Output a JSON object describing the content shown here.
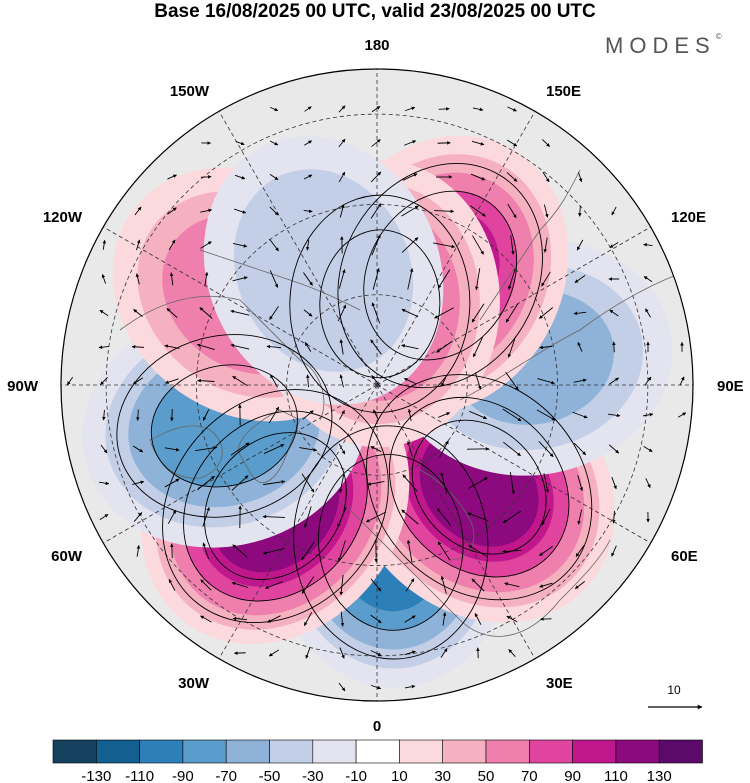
{
  "title": "Base 16/08/2025 00 UTC, valid 23/08/2025 00 UTC",
  "brand": "MODES",
  "brand_mark": "©",
  "longitude_labels": {
    "top": "180",
    "bottom": "0",
    "left": "90W",
    "right": "90E",
    "upper_left": "150W",
    "upper_right": "150E",
    "mid_upper_left": "120W",
    "mid_upper_right": "120E",
    "lower_left": "60W",
    "lower_right": "60E",
    "bottom_left": "30W",
    "bottom_right": "30E"
  },
  "reference_vector": {
    "label": "10"
  },
  "colorbar": {
    "labels": [
      "-130",
      "-110",
      "-90",
      "-70",
      "-50",
      "-30",
      "-10",
      "10",
      "30",
      "50",
      "70",
      "90",
      "110",
      "130"
    ],
    "colors": [
      "#14425f",
      "#125f90",
      "#2d7fba",
      "#5a9ccb",
      "#8fb2d8",
      "#c3cfe6",
      "#e4e4f1",
      "#ffffff",
      "#fbd9dd",
      "#f6b1c0",
      "#ef7fad",
      "#e0449f",
      "#c0178c",
      "#8c0a7e",
      "#5c0a6a"
    ]
  },
  "anomaly_centers": [
    {
      "name": "low-north-atlantic",
      "value": -90,
      "lon": 5,
      "lat": 55
    },
    {
      "name": "high-scandinavia",
      "value": 110,
      "lon": 45,
      "lat": 58
    },
    {
      "name": "high-greenland-sea",
      "value": 120,
      "lon": -40,
      "lat": 55
    },
    {
      "name": "low-hudson-bay",
      "value": -70,
      "lon": -75,
      "lat": 55
    },
    {
      "name": "low-central-siberia",
      "value": -50,
      "lon": 100,
      "lat": 55
    },
    {
      "name": "high-east-siberia",
      "value": 90,
      "lon": 150,
      "lat": 62
    },
    {
      "name": "high-alaska",
      "value": 60,
      "lon": -125,
      "lat": 55
    },
    {
      "name": "low-east-siberian-sea",
      "value": -50,
      "lon": -170,
      "lat": 70
    },
    {
      "name": "high-chukchi",
      "value": 70,
      "lon": 178,
      "lat": 72
    },
    {
      "name": "low-beaufort",
      "value": -40,
      "lon": -155,
      "lat": 62
    }
  ]
}
